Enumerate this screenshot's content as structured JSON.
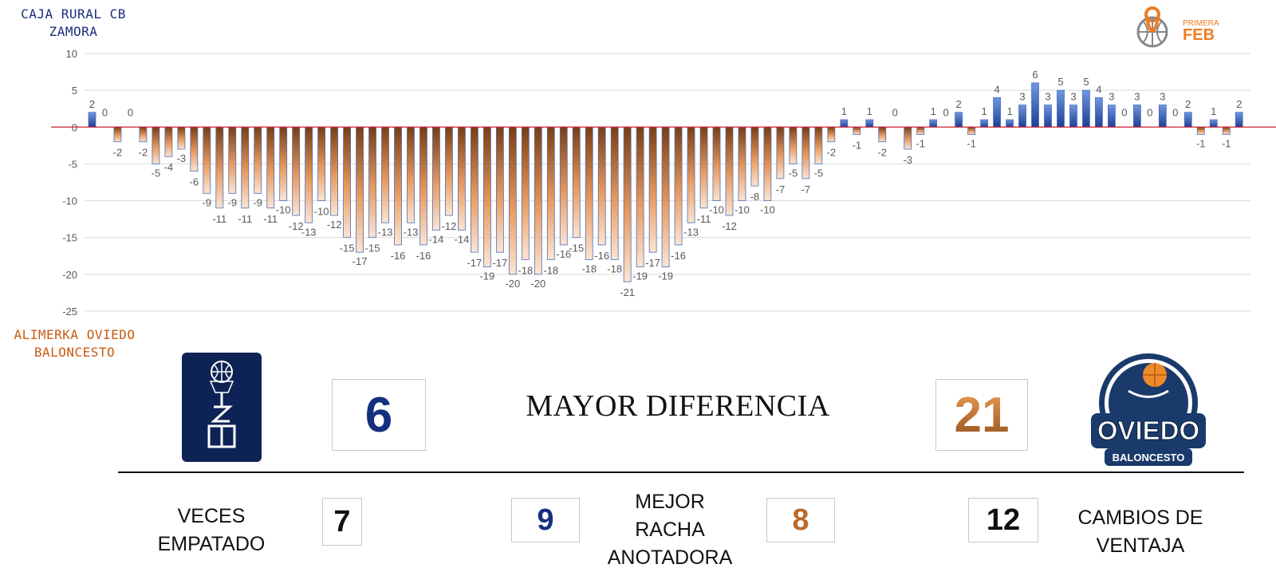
{
  "teams": {
    "home": {
      "line1": "CAJA RURAL CB",
      "line2": "ZAMORA"
    },
    "away": {
      "line1": "ALIMERKA OVIEDO",
      "line2": "BALONCESTO"
    }
  },
  "league_logo": {
    "line1": "PRIMERA",
    "line2": "FEB"
  },
  "oviedo_logo": {
    "name": "OVIEDO",
    "sub": "BALONCESTO"
  },
  "stats": {
    "mayor_diferencia": {
      "label": "MAYOR DIFERENCIA",
      "home": "6",
      "away": "21"
    },
    "veces_empatado": {
      "label_line1": "VECES",
      "label_line2": "EMPATADO",
      "value": "7"
    },
    "mejor_racha": {
      "label_line1": "MEJOR",
      "label_line2": "RACHA",
      "label_line3": "ANOTADORA",
      "home": "9",
      "away": "8"
    },
    "cambios_ventaja": {
      "label_line1": "CAMBIOS DE",
      "label_line2": "VENTAJA",
      "value": "12"
    }
  },
  "colors": {
    "home_blue": "#14307f",
    "away_orange": "#c65b12",
    "zero_line": "#cc1f2f"
  },
  "chart_data": {
    "type": "bar",
    "ylim": [
      -25,
      10
    ],
    "yticks": [
      10,
      5,
      0,
      -5,
      -10,
      -15,
      -20,
      -25
    ],
    "grid": true,
    "series": [
      {
        "values": [
          2,
          0,
          -2,
          0,
          -2,
          -5,
          -4,
          -3,
          -6,
          -9,
          -11,
          -9,
          -11,
          -9,
          -11,
          -10,
          -12,
          -13,
          -10,
          -12,
          -15,
          -17,
          -15,
          -13,
          -16,
          -13,
          -16,
          -14,
          -12,
          -14,
          -17,
          -19,
          -17,
          -20,
          -18,
          -20,
          -18,
          -16,
          -15,
          -18,
          -16,
          -18,
          -21,
          -19,
          -17,
          -19,
          -16,
          -13,
          -11,
          -10,
          -12,
          -10,
          -8,
          -10,
          -7,
          -5,
          -7,
          -5,
          -2,
          1,
          -1,
          1,
          -2,
          0,
          -3,
          -1,
          1,
          0,
          2,
          -1,
          1,
          4,
          1,
          3,
          6,
          3,
          5,
          3,
          5,
          4,
          3,
          0,
          3,
          0,
          3,
          0,
          2,
          -1,
          1,
          -1,
          2
        ]
      }
    ]
  }
}
